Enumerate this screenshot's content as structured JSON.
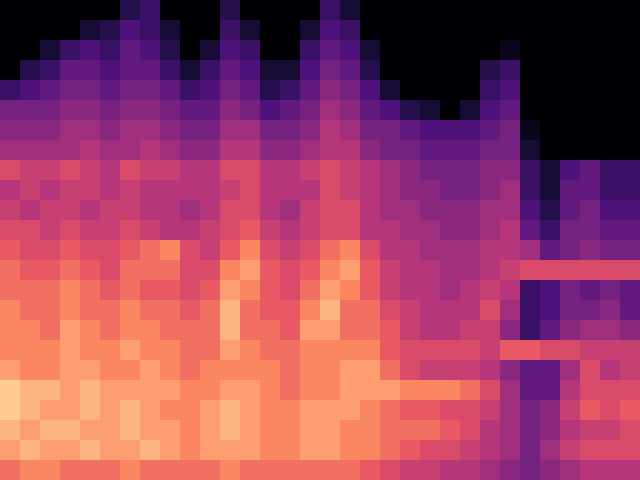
{
  "chart_data": {
    "type": "heatmap",
    "tick_labels": false,
    "zlim": [
      0,
      1
    ],
    "cells": [
      [
        0,
        0,
        0,
        0,
        0,
        0,
        0.15,
        0.2,
        0,
        0,
        0,
        0.15,
        0,
        0,
        0,
        0,
        0.2,
        0.1,
        0,
        0,
        0,
        0,
        0,
        0,
        0,
        0,
        0,
        0,
        0,
        0,
        0,
        0
      ],
      [
        0,
        0,
        0,
        0,
        0.1,
        0.15,
        0.25,
        0.2,
        0.1,
        0,
        0,
        0.2,
        0.1,
        0,
        0,
        0.1,
        0.25,
        0.2,
        0,
        0,
        0,
        0,
        0,
        0,
        0,
        0,
        0,
        0,
        0,
        0,
        0,
        0
      ],
      [
        0,
        0,
        0.1,
        0.2,
        0.25,
        0.2,
        0.3,
        0.25,
        0.15,
        0,
        0.1,
        0.25,
        0.2,
        0,
        0,
        0.2,
        0.3,
        0.25,
        0.1,
        0,
        0,
        0,
        0,
        0,
        0,
        0.05,
        0,
        0,
        0,
        0,
        0,
        0
      ],
      [
        0,
        0.15,
        0.2,
        0.3,
        0.3,
        0.25,
        0.3,
        0.3,
        0.2,
        0.1,
        0.2,
        0.3,
        0.25,
        0.1,
        0.1,
        0.25,
        0.35,
        0.3,
        0.15,
        0,
        0,
        0,
        0,
        0,
        0.15,
        0.2,
        0,
        0,
        0,
        0,
        0,
        0
      ],
      [
        0.2,
        0.25,
        0.3,
        0.35,
        0.35,
        0.3,
        0.35,
        0.35,
        0.3,
        0.2,
        0.25,
        0.35,
        0.3,
        0.15,
        0.2,
        0.3,
        0.4,
        0.35,
        0.25,
        0.1,
        0,
        0,
        0,
        0,
        0.2,
        0.25,
        0,
        0,
        0,
        0,
        0,
        0
      ],
      [
        0.35,
        0.35,
        0.35,
        0.4,
        0.4,
        0.35,
        0.4,
        0.4,
        0.35,
        0.3,
        0.3,
        0.4,
        0.35,
        0.25,
        0.3,
        0.35,
        0.45,
        0.4,
        0.3,
        0.25,
        0.15,
        0.1,
        0,
        0.1,
        0.25,
        0.3,
        0,
        0,
        0,
        0,
        0,
        0
      ],
      [
        0.4,
        0.4,
        0.4,
        0.45,
        0.45,
        0.4,
        0.45,
        0.45,
        0.4,
        0.35,
        0.35,
        0.45,
        0.45,
        0.35,
        0.35,
        0.4,
        0.5,
        0.45,
        0.35,
        0.35,
        0.3,
        0.25,
        0.25,
        0.25,
        0.3,
        0.35,
        0.05,
        0,
        0,
        0,
        0,
        0
      ],
      [
        0.45,
        0.45,
        0.45,
        0.45,
        0.5,
        0.45,
        0.45,
        0.5,
        0.45,
        0.4,
        0.4,
        0.5,
        0.5,
        0.4,
        0.4,
        0.45,
        0.5,
        0.5,
        0.4,
        0.35,
        0.35,
        0.3,
        0.3,
        0.3,
        0.35,
        0.35,
        0.1,
        0,
        0,
        0,
        0,
        0
      ],
      [
        0.6,
        0.55,
        0.55,
        0.6,
        0.55,
        0.5,
        0.6,
        0.55,
        0.55,
        0.5,
        0.5,
        0.6,
        0.6,
        0.5,
        0.5,
        0.55,
        0.6,
        0.55,
        0.5,
        0.45,
        0.4,
        0.35,
        0.35,
        0.35,
        0.4,
        0.4,
        0.2,
        0.1,
        0.25,
        0.3,
        0.2,
        0.2
      ],
      [
        0.5,
        0.55,
        0.5,
        0.55,
        0.55,
        0.5,
        0.55,
        0.5,
        0.5,
        0.5,
        0.5,
        0.55,
        0.6,
        0.5,
        0.5,
        0.5,
        0.6,
        0.55,
        0.5,
        0.45,
        0.4,
        0.4,
        0.35,
        0.35,
        0.4,
        0.45,
        0.2,
        0.1,
        0.3,
        0.3,
        0.2,
        0.2
      ],
      [
        0.55,
        0.5,
        0.55,
        0.55,
        0.5,
        0.55,
        0.55,
        0.5,
        0.5,
        0.45,
        0.5,
        0.6,
        0.6,
        0.5,
        0.45,
        0.55,
        0.6,
        0.6,
        0.5,
        0.45,
        0.45,
        0.4,
        0.4,
        0.4,
        0.45,
        0.45,
        0.25,
        0.15,
        0.3,
        0.35,
        0.25,
        0.25
      ],
      [
        0.6,
        0.6,
        0.55,
        0.6,
        0.55,
        0.55,
        0.6,
        0.55,
        0.5,
        0.5,
        0.55,
        0.6,
        0.65,
        0.55,
        0.5,
        0.55,
        0.6,
        0.6,
        0.5,
        0.5,
        0.45,
        0.45,
        0.4,
        0.4,
        0.45,
        0.5,
        0.3,
        0.2,
        0.35,
        0.35,
        0.3,
        0.3
      ],
      [
        0.65,
        0.6,
        0.6,
        0.65,
        0.6,
        0.6,
        0.65,
        0.7,
        0.75,
        0.6,
        0.55,
        0.65,
        0.75,
        0.6,
        0.55,
        0.6,
        0.7,
        0.75,
        0.6,
        0.5,
        0.5,
        0.45,
        0.45,
        0.45,
        0.5,
        0.5,
        0.45,
        0.3,
        0.35,
        0.4,
        0.35,
        0.35
      ],
      [
        0.7,
        0.65,
        0.65,
        0.7,
        0.65,
        0.6,
        0.7,
        0.7,
        0.7,
        0.6,
        0.6,
        0.75,
        0.8,
        0.65,
        0.6,
        0.65,
        0.75,
        0.8,
        0.65,
        0.55,
        0.5,
        0.5,
        0.45,
        0.45,
        0.5,
        0.55,
        0.6,
        0.6,
        0.6,
        0.6,
        0.6,
        0.6
      ],
      [
        0.7,
        0.7,
        0.7,
        0.75,
        0.7,
        0.65,
        0.7,
        0.65,
        0.65,
        0.6,
        0.65,
        0.8,
        0.75,
        0.65,
        0.6,
        0.7,
        0.8,
        0.75,
        0.65,
        0.55,
        0.5,
        0.5,
        0.45,
        0.5,
        0.55,
        0.5,
        0.2,
        0.25,
        0.35,
        0.3,
        0.35,
        0.3
      ],
      [
        0.75,
        0.7,
        0.7,
        0.75,
        0.7,
        0.7,
        0.75,
        0.7,
        0.7,
        0.65,
        0.7,
        0.85,
        0.7,
        0.65,
        0.65,
        0.75,
        0.85,
        0.7,
        0.7,
        0.6,
        0.55,
        0.5,
        0.5,
        0.5,
        0.6,
        0.45,
        0.2,
        0.25,
        0.35,
        0.35,
        0.4,
        0.3
      ],
      [
        0.75,
        0.75,
        0.7,
        0.8,
        0.75,
        0.7,
        0.75,
        0.75,
        0.7,
        0.7,
        0.7,
        0.85,
        0.7,
        0.7,
        0.65,
        0.8,
        0.8,
        0.7,
        0.7,
        0.65,
        0.55,
        0.5,
        0.5,
        0.55,
        0.55,
        0.4,
        0.2,
        0.3,
        0.4,
        0.45,
        0.45,
        0.4
      ],
      [
        0.75,
        0.75,
        0.75,
        0.8,
        0.75,
        0.75,
        0.8,
        0.75,
        0.75,
        0.7,
        0.7,
        0.8,
        0.75,
        0.7,
        0.7,
        0.75,
        0.75,
        0.75,
        0.75,
        0.65,
        0.6,
        0.6,
        0.6,
        0.6,
        0.55,
        0.65,
        0.65,
        0.6,
        0.6,
        0.55,
        0.55,
        0.55
      ],
      [
        0.8,
        0.75,
        0.75,
        0.8,
        0.8,
        0.75,
        0.75,
        0.8,
        0.75,
        0.7,
        0.75,
        0.75,
        0.75,
        0.75,
        0.7,
        0.75,
        0.75,
        0.8,
        0.8,
        0.7,
        0.6,
        0.55,
        0.55,
        0.55,
        0.5,
        0.4,
        0.3,
        0.3,
        0.45,
        0.6,
        0.5,
        0.55
      ],
      [
        0.9,
        0.85,
        0.85,
        0.8,
        0.85,
        0.8,
        0.8,
        0.8,
        0.8,
        0.75,
        0.75,
        0.8,
        0.8,
        0.75,
        0.7,
        0.75,
        0.75,
        0.8,
        0.8,
        0.8,
        0.75,
        0.75,
        0.75,
        0.7,
        0.6,
        0.45,
        0.3,
        0.3,
        0.5,
        0.6,
        0.6,
        0.6
      ],
      [
        0.9,
        0.85,
        0.8,
        0.8,
        0.85,
        0.8,
        0.85,
        0.8,
        0.75,
        0.75,
        0.8,
        0.85,
        0.8,
        0.75,
        0.75,
        0.8,
        0.8,
        0.8,
        0.75,
        0.7,
        0.65,
        0.65,
        0.6,
        0.6,
        0.55,
        0.45,
        0.35,
        0.4,
        0.55,
        0.65,
        0.6,
        0.65
      ],
      [
        0.85,
        0.8,
        0.85,
        0.85,
        0.8,
        0.8,
        0.85,
        0.8,
        0.8,
        0.75,
        0.8,
        0.85,
        0.8,
        0.75,
        0.75,
        0.8,
        0.8,
        0.75,
        0.75,
        0.7,
        0.7,
        0.7,
        0.65,
        0.6,
        0.5,
        0.45,
        0.35,
        0.4,
        0.5,
        0.55,
        0.55,
        0.6
      ],
      [
        0.8,
        0.85,
        0.8,
        0.8,
        0.85,
        0.8,
        0.8,
        0.85,
        0.8,
        0.75,
        0.8,
        0.8,
        0.8,
        0.75,
        0.75,
        0.8,
        0.8,
        0.75,
        0.75,
        0.7,
        0.65,
        0.6,
        0.6,
        0.55,
        0.5,
        0.45,
        0.35,
        0.45,
        0.55,
        0.6,
        0.6,
        0.6
      ],
      [
        0.7,
        0.75,
        0.75,
        0.7,
        0.7,
        0.7,
        0.75,
        0.7,
        0.7,
        0.7,
        0.7,
        0.75,
        0.7,
        0.7,
        0.7,
        0.7,
        0.7,
        0.7,
        0.65,
        0.6,
        0.55,
        0.55,
        0.5,
        0.5,
        0.45,
        0.4,
        0.35,
        0.4,
        0.45,
        0.5,
        0.5,
        0.5
      ]
    ]
  }
}
